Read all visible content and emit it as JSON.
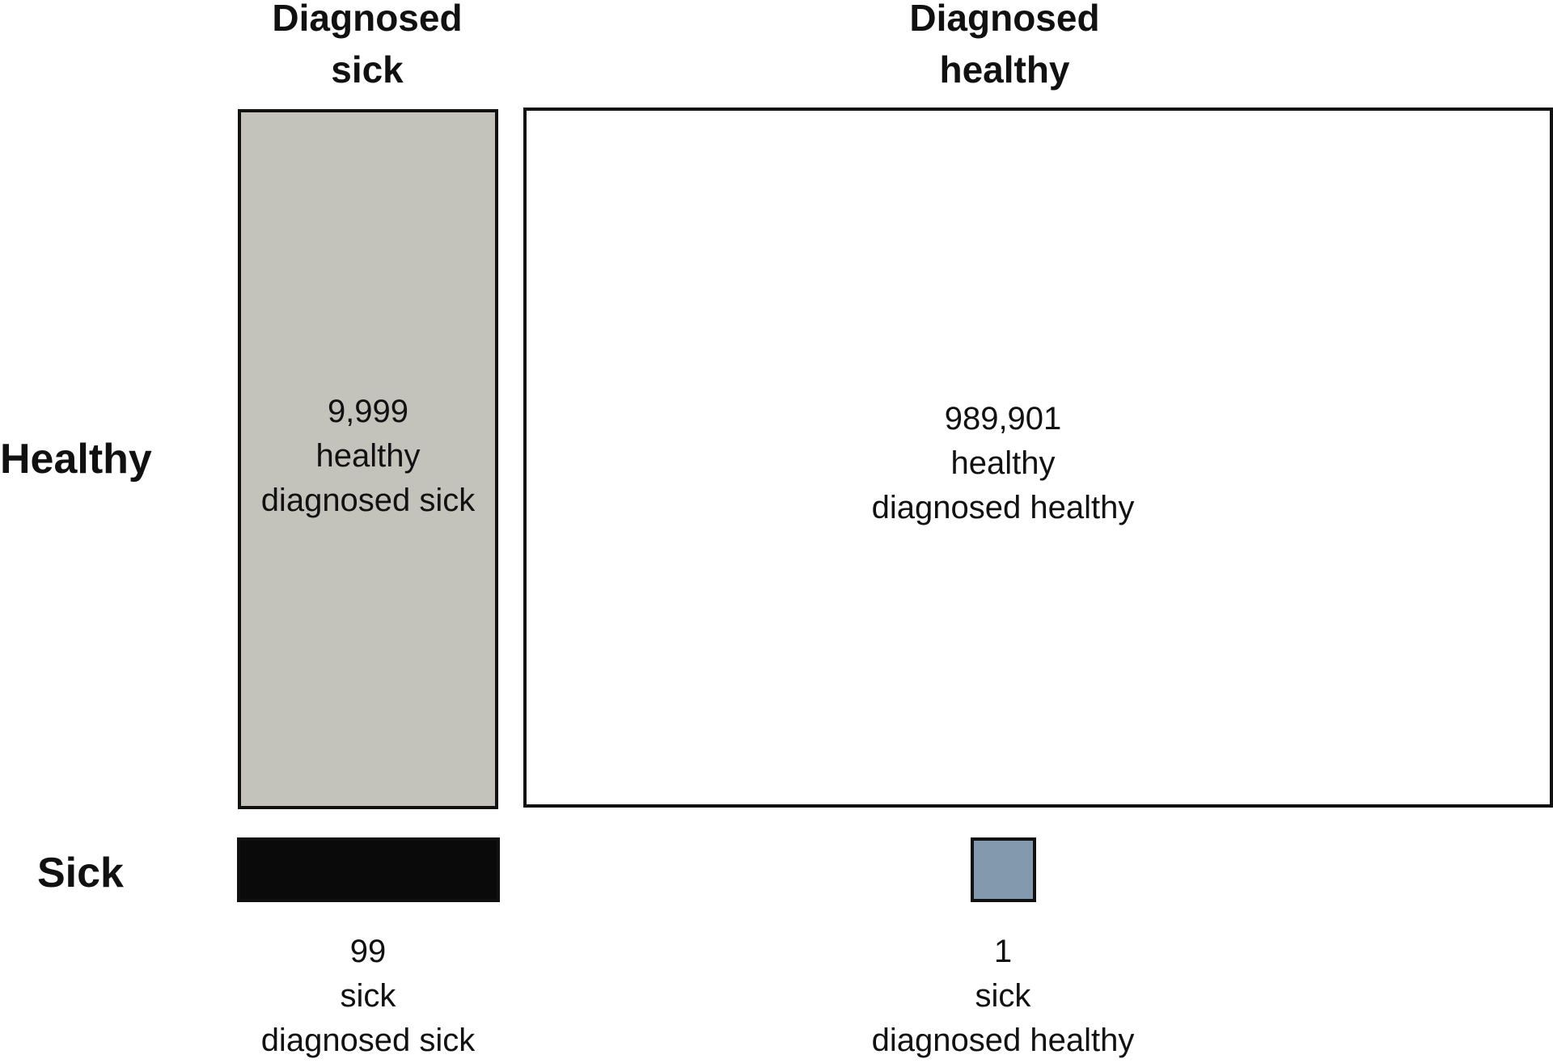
{
  "columns": {
    "sick": {
      "line1": "Diagnosed",
      "line2": "sick"
    },
    "healthy": {
      "line1": "Diagnosed",
      "line2": "healthy"
    }
  },
  "rows": {
    "healthy": "Healthy",
    "sick": "Sick"
  },
  "cells": {
    "healthy_diagnosed_sick": {
      "count": "9,999",
      "line2": "healthy",
      "line3": "diagnosed sick",
      "color": "#c4c3bb"
    },
    "healthy_diagnosed_healthy": {
      "count": "989,901",
      "line2": "healthy",
      "line3": "diagnosed healthy",
      "color": "#ffffff"
    },
    "sick_diagnosed_sick": {
      "count": "99",
      "line2": "sick",
      "line3": "diagnosed sick",
      "color": "#0a0a0a"
    },
    "sick_diagnosed_healthy": {
      "count": "1",
      "line2": "sick",
      "line3": "diagnosed healthy",
      "color": "#8399ad"
    }
  }
}
